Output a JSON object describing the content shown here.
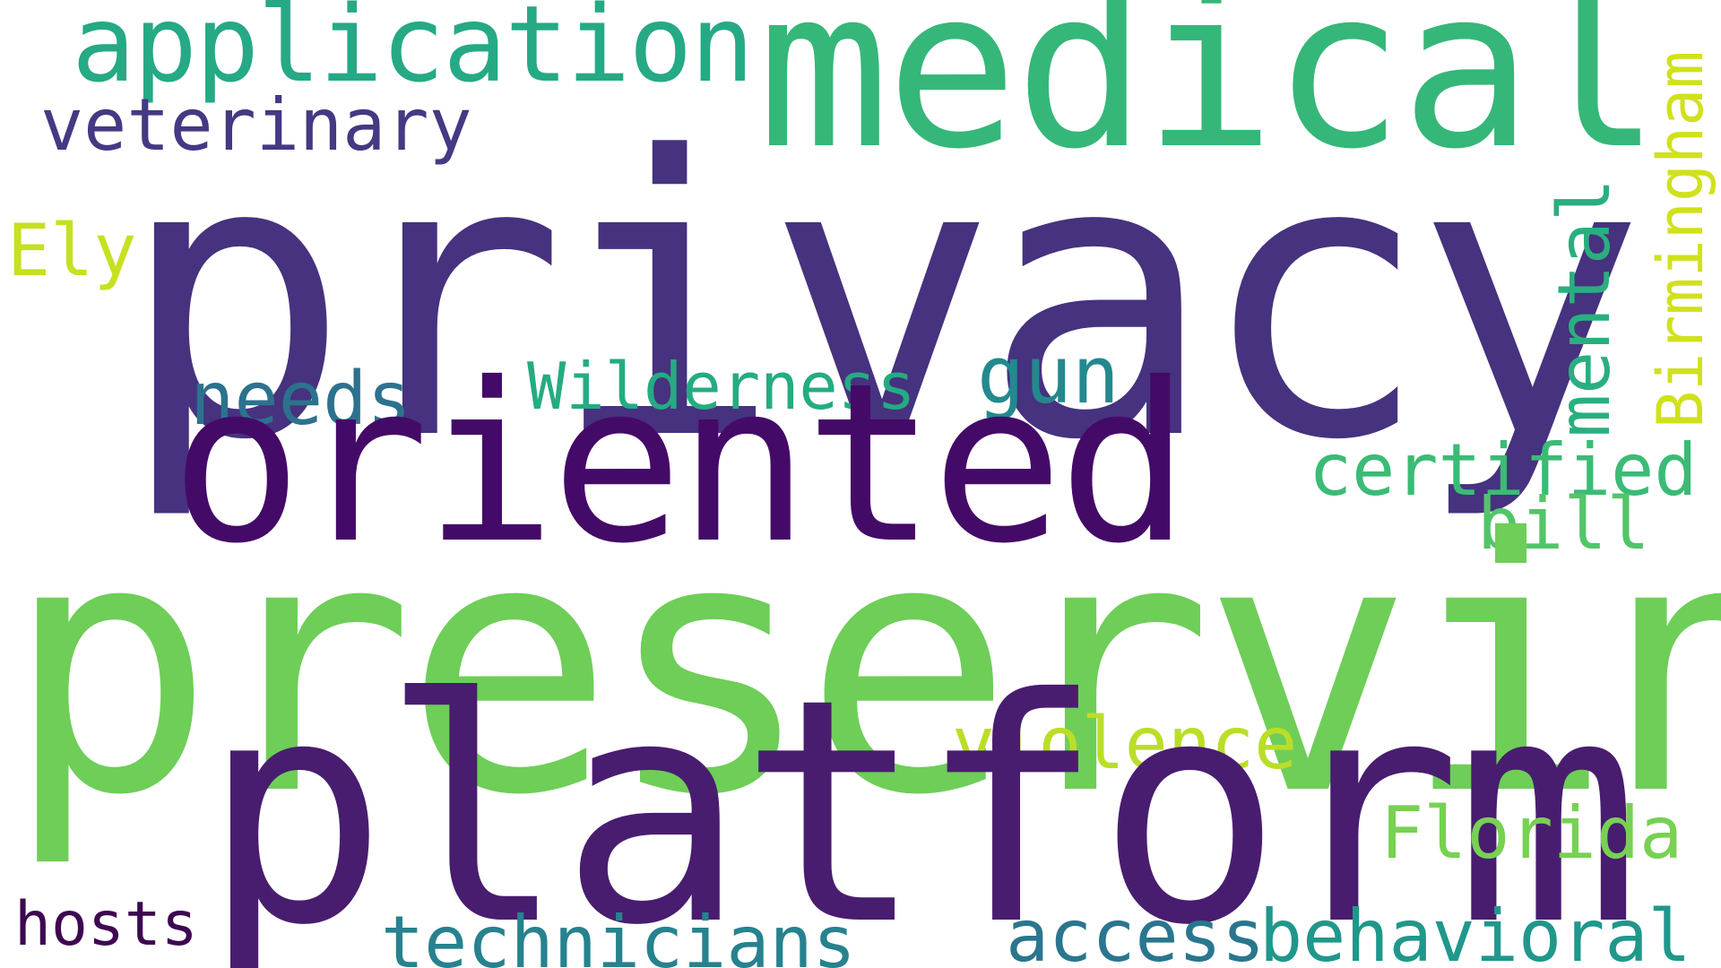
{
  "background_color": "#ffffff",
  "words": {
    "privacy": {
      "text": "privacy",
      "color": "#46327e"
    },
    "preserving": {
      "text": "preserving",
      "color": "#6ece58"
    },
    "platform": {
      "text": "platform",
      "color": "#481d6f"
    },
    "oriented": {
      "text": "oriented",
      "color": "#440a68"
    },
    "medical": {
      "text": "medical",
      "color": "#35b779"
    },
    "application": {
      "text": "application",
      "color": "#26a985"
    },
    "veterinary": {
      "text": "veterinary",
      "color": "#443983"
    },
    "ely": {
      "text": "Ely",
      "color": "#c7e020"
    },
    "needs": {
      "text": "needs",
      "color": "#2c728e"
    },
    "wilderness": {
      "text": "Wilderness",
      "color": "#25ab82"
    },
    "gun": {
      "text": "gun",
      "color": "#23898e"
    },
    "certified": {
      "text": "certified",
      "color": "#3bbb75"
    },
    "bill": {
      "text": "bill",
      "color": "#52c569"
    },
    "violence": {
      "text": "violence",
      "color": "#bade28"
    },
    "florida": {
      "text": "Florida",
      "color": "#77d153"
    },
    "hosts": {
      "text": "hosts",
      "color": "#3e0751"
    },
    "technicians": {
      "text": "technicians",
      "color": "#26828e"
    },
    "access": {
      "text": "access",
      "color": "#2a768e"
    },
    "behavioral": {
      "text": "behavioral",
      "color": "#1f988b"
    },
    "mental": {
      "text": "mental",
      "color": "#29af7f"
    },
    "birmingham": {
      "text": "Birmingham",
      "color": "#d0e11c"
    }
  }
}
